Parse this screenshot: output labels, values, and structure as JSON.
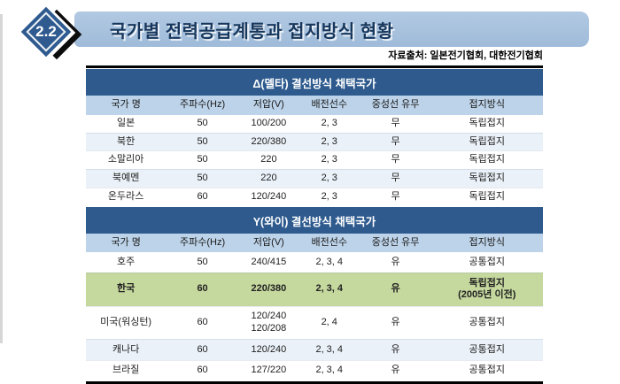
{
  "slide": {
    "badge": "2.2",
    "title": "국가별 전력공급계통과 접지방식 현황",
    "source": "자료출처: 일본전기협회, 대한전기협회"
  },
  "colors": {
    "title_bar_top": "#b2c9e2",
    "title_bar_bottom": "#9fbbd9",
    "title_text": "#17375d",
    "badge_blue": "#2e5a8f",
    "section_header_bg": "#2e5a8e",
    "section_header_text": "#ffffff",
    "column_header_bg": "#bdd3e9",
    "row_alt_bg": "#eaf1f8",
    "highlight_row_bg": "#c5d89e"
  },
  "table": {
    "columns": [
      "국가 명",
      "주파수(Hz)",
      "저압(V)",
      "배전선수",
      "중성선 유무",
      "접지방식"
    ],
    "sections": [
      {
        "title": "Δ(델타) 결선방식 채택국가",
        "rows": [
          {
            "cells": [
              "일본",
              "50",
              "100/200",
              "2, 3",
              "무",
              "독립접지"
            ],
            "variant": "plain"
          },
          {
            "cells": [
              "북한",
              "50",
              "220/380",
              "2, 3",
              "무",
              "독립접지"
            ],
            "variant": "alt"
          },
          {
            "cells": [
              "소말리아",
              "50",
              "220",
              "2, 3",
              "무",
              "독립접지"
            ],
            "variant": "plain"
          },
          {
            "cells": [
              "북예멘",
              "50",
              "220",
              "2, 3",
              "무",
              "독립접지"
            ],
            "variant": "alt"
          },
          {
            "cells": [
              "온두라스",
              "60",
              "120/240",
              "2, 3",
              "무",
              "독립접지"
            ],
            "variant": "plain"
          }
        ]
      },
      {
        "title": "Y(와이) 결선방식 채택국가",
        "rows": [
          {
            "cells": [
              "호주",
              "50",
              "240/415",
              "2, 3, 4",
              "유",
              "공통접지"
            ],
            "variant": "plain"
          },
          {
            "cells": [
              "한국",
              "60",
              "220/380",
              "2, 3, 4",
              "유",
              "독립접지\n(2005년 이전)"
            ],
            "variant": "highlight",
            "bold": true
          },
          {
            "cells": [
              "미국(워싱턴)",
              "60",
              "120/240\n120/208",
              "2, 4",
              "유",
              "공통접지"
            ],
            "variant": "plain"
          },
          {
            "cells": [
              "캐나다",
              "60",
              "120/240",
              "2, 3, 4",
              "유",
              "공통접지"
            ],
            "variant": "alt"
          },
          {
            "cells": [
              "브라질",
              "60",
              "127/220",
              "2, 3, 4",
              "유",
              "공통접지"
            ],
            "variant": "plain"
          }
        ]
      }
    ]
  }
}
